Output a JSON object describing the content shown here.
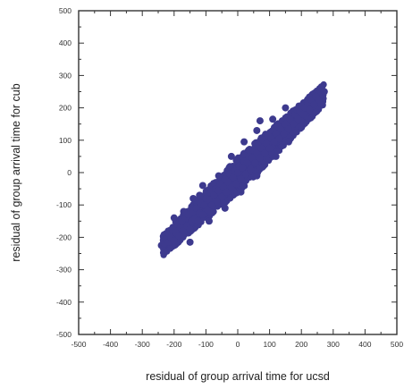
{
  "chart_data": {
    "type": "scatter",
    "title": "",
    "xlabel": "residual of group arrival time for ucsd",
    "ylabel": "residual of group arrival time for cub",
    "xlim": [
      -500,
      500
    ],
    "ylim": [
      -500,
      500
    ],
    "x_ticks": [
      "-500",
      "-400",
      "-300",
      "-200",
      "-100",
      "0",
      "100",
      "200",
      "300",
      "400",
      "500"
    ],
    "y_ticks": [
      "-500",
      "-400",
      "-300",
      "-200",
      "-100",
      "0",
      "100",
      "200",
      "300",
      "400",
      "500"
    ],
    "grid": false,
    "legend": "none",
    "marker_color": "#3d3a8e",
    "series": [
      {
        "points": [
          [
            -240,
            -225
          ],
          [
            -230,
            -220
          ],
          [
            -225,
            -205
          ],
          [
            -218,
            -215
          ],
          [
            -215,
            -190
          ],
          [
            -210,
            -200
          ],
          [
            -205,
            -175
          ],
          [
            -200,
            -210
          ],
          [
            -195,
            -185
          ],
          [
            -190,
            -160
          ],
          [
            -185,
            -195
          ],
          [
            -180,
            -170
          ],
          [
            -175,
            -150
          ],
          [
            -170,
            -180
          ],
          [
            -165,
            -140
          ],
          [
            -160,
            -165
          ],
          [
            -155,
            -130
          ],
          [
            -150,
            -175
          ],
          [
            -145,
            -150
          ],
          [
            -140,
            -120
          ],
          [
            -135,
            -145
          ],
          [
            -130,
            -110
          ],
          [
            -125,
            -150
          ],
          [
            -120,
            -125
          ],
          [
            -115,
            -95
          ],
          [
            -110,
            -130
          ],
          [
            -105,
            -100
          ],
          [
            -100,
            -80
          ],
          [
            -95,
            -115
          ],
          [
            -90,
            -85
          ],
          [
            -85,
            -60
          ],
          [
            -80,
            -100
          ],
          [
            -75,
            -70
          ],
          [
            -70,
            -50
          ],
          [
            -65,
            -90
          ],
          [
            -60,
            -55
          ],
          [
            -55,
            -35
          ],
          [
            -50,
            -75
          ],
          [
            -45,
            -45
          ],
          [
            -40,
            -20
          ],
          [
            -35,
            -60
          ],
          [
            -30,
            -30
          ],
          [
            -25,
            -5
          ],
          [
            -20,
            -45
          ],
          [
            -15,
            -15
          ],
          [
            -10,
            5
          ],
          [
            -5,
            -35
          ],
          [
            0,
            0
          ],
          [
            5,
            20
          ],
          [
            10,
            -20
          ],
          [
            15,
            15
          ],
          [
            20,
            35
          ],
          [
            25,
            -5
          ],
          [
            30,
            30
          ],
          [
            35,
            50
          ],
          [
            40,
            10
          ],
          [
            45,
            45
          ],
          [
            50,
            70
          ],
          [
            55,
            30
          ],
          [
            60,
            60
          ],
          [
            65,
            85
          ],
          [
            70,
            45
          ],
          [
            75,
            75
          ],
          [
            80,
            100
          ],
          [
            85,
            60
          ],
          [
            90,
            90
          ],
          [
            95,
            115
          ],
          [
            100,
            75
          ],
          [
            105,
            105
          ],
          [
            110,
            130
          ],
          [
            115,
            95
          ],
          [
            120,
            120
          ],
          [
            125,
            145
          ],
          [
            130,
            105
          ],
          [
            135,
            135
          ],
          [
            140,
            160
          ],
          [
            145,
            120
          ],
          [
            150,
            150
          ],
          [
            155,
            170
          ],
          [
            160,
            135
          ],
          [
            165,
            165
          ],
          [
            170,
            185
          ],
          [
            175,
            150
          ],
          [
            180,
            180
          ],
          [
            185,
            195
          ],
          [
            190,
            165
          ],
          [
            195,
            190
          ],
          [
            200,
            205
          ],
          [
            205,
            180
          ],
          [
            210,
            200
          ],
          [
            220,
            215
          ],
          [
            225,
            195
          ],
          [
            230,
            225
          ],
          [
            240,
            210
          ],
          [
            245,
            235
          ],
          [
            255,
            225
          ],
          [
            262,
            262
          ],
          [
            268,
            240
          ],
          [
            272,
            250
          ],
          [
            -60,
            -10
          ],
          [
            -120,
            -70
          ],
          [
            -170,
            -120
          ],
          [
            20,
            95
          ],
          [
            60,
            130
          ],
          [
            110,
            165
          ],
          [
            150,
            200
          ],
          [
            -20,
            50
          ],
          [
            70,
            160
          ],
          [
            -90,
            -150
          ],
          [
            -40,
            -110
          ],
          [
            10,
            -60
          ],
          [
            60,
            -10
          ],
          [
            120,
            50
          ],
          [
            160,
            95
          ],
          [
            -150,
            -215
          ],
          [
            200,
            140
          ],
          [
            -200,
            -140
          ],
          [
            -110,
            -40
          ],
          [
            -140,
            -80
          ]
        ]
      }
    ]
  }
}
